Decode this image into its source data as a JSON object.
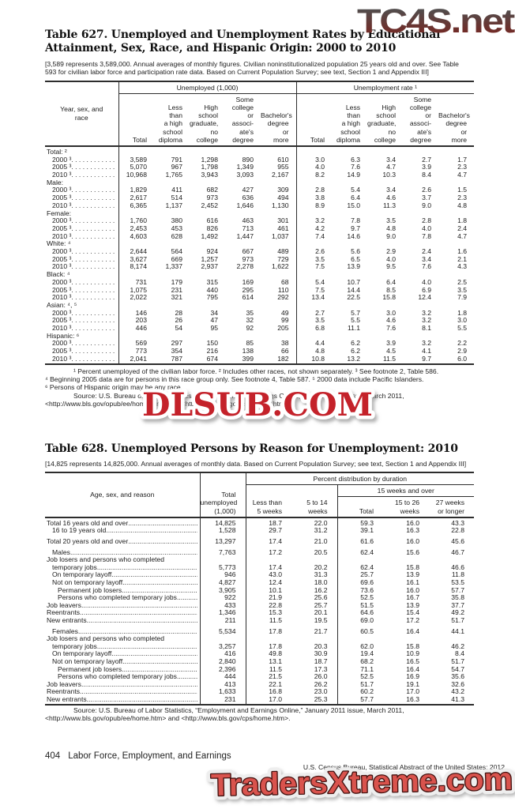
{
  "watermarks": {
    "top": "TC4S.net",
    "middle": "DLSUB.COM",
    "bottom": "TradersXtreme.com"
  },
  "table627": {
    "title": "Table 627. Unemployed and Unemployment Rates by Educational Attainment, Sex, Race, and Hispanic Origin: 2000 to 2010",
    "note": "[3,589 represents 3,589,000. Annual averages of monthly figures. Civilian noninstitutionalized population 25 years old and over. See Table 593 for civilian labor force and participation rate data. Based on Current Population Survey; see text, Section 1 and Appendix III]",
    "stub_header": "Year, sex, and\nrace",
    "groups": [
      "Unemployed (1,000)",
      "Unemployment rate ¹"
    ],
    "columns": [
      "Total",
      "Less than\na high\nschool\ndiploma",
      "High\nschool\ngraduate,\nno college",
      "Some\ncollege or\nassoci-\nate's\ndegree",
      "Bachelor's\ndegree or\nmore"
    ],
    "rows": [
      {
        "label": "Total: ²",
        "group": true
      },
      {
        "label": "2000 ³",
        "values": [
          "3,589",
          "791",
          "1,298",
          "890",
          "610",
          "3.0",
          "6.3",
          "3.4",
          "2.7",
          "1.7"
        ]
      },
      {
        "label": "2005 ³",
        "values": [
          "5,070",
          "967",
          "1,798",
          "1,349",
          "955",
          "4.0",
          "7.6",
          "4.7",
          "3.9",
          "2.3"
        ]
      },
      {
        "label": "2010 ³",
        "values": [
          "10,968",
          "1,765",
          "3,943",
          "3,093",
          "2,167",
          "8.2",
          "14.9",
          "10.3",
          "8.4",
          "4.7"
        ]
      },
      {
        "label": "Male:",
        "group": true
      },
      {
        "label": "2000 ³",
        "values": [
          "1,829",
          "411",
          "682",
          "427",
          "309",
          "2.8",
          "5.4",
          "3.4",
          "2.6",
          "1.5"
        ]
      },
      {
        "label": "2005 ³",
        "values": [
          "2,617",
          "514",
          "973",
          "636",
          "494",
          "3.8",
          "6.4",
          "4.6",
          "3.7",
          "2.3"
        ]
      },
      {
        "label": "2010 ³",
        "values": [
          "6,365",
          "1,137",
          "2,452",
          "1,646",
          "1,130",
          "8.9",
          "15.0",
          "11.3",
          "9.0",
          "4.8"
        ]
      },
      {
        "label": "Female:",
        "group": true
      },
      {
        "label": "2000 ³",
        "values": [
          "1,760",
          "380",
          "616",
          "463",
          "301",
          "3.2",
          "7.8",
          "3.5",
          "2.8",
          "1.8"
        ]
      },
      {
        "label": "2005 ³",
        "values": [
          "2,453",
          "453",
          "826",
          "713",
          "461",
          "4.2",
          "9.7",
          "4.8",
          "4.0",
          "2.4"
        ]
      },
      {
        "label": "2010 ³",
        "values": [
          "4,603",
          "628",
          "1,492",
          "1,447",
          "1,037",
          "7.4",
          "14.6",
          "9.0",
          "7.8",
          "4.7"
        ]
      },
      {
        "label": "White: ⁴",
        "group": true
      },
      {
        "label": "2000 ³",
        "values": [
          "2,644",
          "564",
          "924",
          "667",
          "489",
          "2.6",
          "5.6",
          "2.9",
          "2.4",
          "1.6"
        ]
      },
      {
        "label": "2005 ³",
        "values": [
          "3,627",
          "669",
          "1,257",
          "973",
          "729",
          "3.5",
          "6.5",
          "4.0",
          "3.4",
          "2.1"
        ]
      },
      {
        "label": "2010 ³",
        "values": [
          "8,174",
          "1,337",
          "2,937",
          "2,278",
          "1,622",
          "7.5",
          "13.9",
          "9.5",
          "7.6",
          "4.3"
        ]
      },
      {
        "label": "Black: ⁴",
        "group": true
      },
      {
        "label": "2000 ³",
        "values": [
          "731",
          "179",
          "315",
          "169",
          "68",
          "5.4",
          "10.7",
          "6.4",
          "4.0",
          "2.5"
        ]
      },
      {
        "label": "2005 ³",
        "values": [
          "1,075",
          "231",
          "440",
          "295",
          "110",
          "7.5",
          "14.4",
          "8.5",
          "6.9",
          "3.5"
        ]
      },
      {
        "label": "2010 ³",
        "values": [
          "2,022",
          "321",
          "795",
          "614",
          "292",
          "13.4",
          "22.5",
          "15.8",
          "12.4",
          "7.9"
        ]
      },
      {
        "label": "Asian: ⁴, ⁵",
        "group": true
      },
      {
        "label": "2000 ³",
        "values": [
          "146",
          "28",
          "34",
          "35",
          "49",
          "2.7",
          "5.7",
          "3.0",
          "3.2",
          "1.8"
        ]
      },
      {
        "label": "2005 ³",
        "values": [
          "203",
          "26",
          "47",
          "32",
          "99",
          "3.5",
          "5.5",
          "4.6",
          "3.2",
          "3.0"
        ]
      },
      {
        "label": "2010 ³",
        "values": [
          "446",
          "54",
          "95",
          "92",
          "205",
          "6.8",
          "11.1",
          "7.6",
          "8.1",
          "5.5"
        ]
      },
      {
        "label": "Hispanic: ⁶",
        "group": true
      },
      {
        "label": "2000 ³",
        "values": [
          "569",
          "297",
          "150",
          "85",
          "38",
          "4.4",
          "6.2",
          "3.9",
          "3.2",
          "2.2"
        ]
      },
      {
        "label": "2005 ³",
        "values": [
          "773",
          "354",
          "216",
          "138",
          "66",
          "4.8",
          "6.2",
          "4.5",
          "4.1",
          "2.9"
        ]
      },
      {
        "label": "2010 ³",
        "values": [
          "2,041",
          "787",
          "674",
          "399",
          "182",
          "10.8",
          "13.2",
          "11.5",
          "9.7",
          "6.0"
        ]
      }
    ],
    "footnotes": [
      "¹ Percent unemployed of the civilian labor force. ² Includes other races, not shown separately. ³ See footnote 2, Table 586.",
      "⁴ Beginning 2005 data are for persons in this race group only. See footnote 4, Table 587. ⁵ 2000 data include Pacific Islanders.",
      "⁶ Persons of Hispanic origin may be any race."
    ],
    "source": [
      "Source: U.S. Bureau of Labor Statistics, “Employment and Earnings Online,” January 2011 issue, March 2011,",
      "<http://www.bls.gov/opub/ee/home.htm> and <http://www.bls.gov/cps/home.htm>."
    ]
  },
  "table628": {
    "title": "Table 628. Unemployed Persons by Reason for Unemployment: 2010",
    "note": "[14,825 represents 14,825,000. Annual averages of monthly data. Based on Current Population Survey; see text, Section 1 and Appendix III]",
    "stub_header": "Age, sex, and reason",
    "total_col_header": "Total\nunemployed\n(1,000)",
    "group_header": "Percent distribution by duration",
    "subgroup_header": "15 weeks and over",
    "columns": [
      "Less than\n5 weeks",
      "5 to 14\nweeks",
      "Total",
      "15 to 26\nweeks",
      "27 weeks\nor longer"
    ],
    "rows": [
      {
        "label": "Total 16 years old and over",
        "bold": true,
        "indent": 0,
        "values": [
          "14,825",
          "18.7",
          "22.0",
          "59.3",
          "16.0",
          "43.3"
        ]
      },
      {
        "label": "16 to 19 years old",
        "indent": 1,
        "values": [
          "1,528",
          "29.7",
          "31.2",
          "39.1",
          "16.3",
          "22.8"
        ]
      },
      {
        "label": "Total 20 years old and over",
        "bold": true,
        "indent": 0,
        "gap": true,
        "values": [
          "13,297",
          "17.4",
          "21.0",
          "61.6",
          "16.0",
          "45.6"
        ]
      },
      {
        "label": "Males",
        "bold": true,
        "indent": 1,
        "gap": true,
        "values": [
          "7,763",
          "17.2",
          "20.5",
          "62.4",
          "15.6",
          "46.7"
        ]
      },
      {
        "label": "Job losers and persons who completed",
        "indent": 0
      },
      {
        "label": "temporary jobs",
        "indent": 1,
        "values": [
          "5,773",
          "17.4",
          "20.2",
          "62.4",
          "15.8",
          "46.6"
        ]
      },
      {
        "label": "On temporary layoff",
        "indent": 1,
        "values": [
          "946",
          "43.0",
          "31.3",
          "25.7",
          "13.9",
          "11.8"
        ]
      },
      {
        "label": "Not on temporary layoff",
        "indent": 1,
        "values": [
          "4,827",
          "12.4",
          "18.0",
          "69.6",
          "16.1",
          "53.5"
        ]
      },
      {
        "label": "Permanent job losers",
        "indent": 2,
        "values": [
          "3,905",
          "10.1",
          "16.2",
          "73.6",
          "16.0",
          "57.7"
        ]
      },
      {
        "label": "Persons who completed temporary jobs",
        "indent": 2,
        "values": [
          "922",
          "21.9",
          "25.6",
          "52.5",
          "16.7",
          "35.8"
        ]
      },
      {
        "label": "Job leavers",
        "indent": 0,
        "values": [
          "433",
          "22.8",
          "25.7",
          "51.5",
          "13.9",
          "37.7"
        ]
      },
      {
        "label": "Reentrants",
        "indent": 0,
        "values": [
          "1,346",
          "15.3",
          "20.1",
          "64.6",
          "15.4",
          "49.2"
        ]
      },
      {
        "label": "New entrants",
        "indent": 0,
        "values": [
          "211",
          "11.5",
          "19.5",
          "69.0",
          "17.2",
          "51.7"
        ]
      },
      {
        "label": "Females",
        "bold": true,
        "indent": 1,
        "gap": true,
        "values": [
          "5,534",
          "17.8",
          "21.7",
          "60.5",
          "16.4",
          "44.1"
        ]
      },
      {
        "label": "Job losers and persons who completed",
        "indent": 0
      },
      {
        "label": "temporary jobs",
        "indent": 1,
        "values": [
          "3,257",
          "17.8",
          "20.3",
          "62.0",
          "15.8",
          "46.2"
        ]
      },
      {
        "label": "On temporary layoff",
        "indent": 1,
        "values": [
          "416",
          "49.8",
          "30.9",
          "19.4",
          "10.9",
          "8.4"
        ]
      },
      {
        "label": "Not on temporary layoff",
        "indent": 1,
        "values": [
          "2,840",
          "13.1",
          "18.7",
          "68.2",
          "16.5",
          "51.7"
        ]
      },
      {
        "label": "Permanent job losers",
        "indent": 2,
        "values": [
          "2,396",
          "11.5",
          "17.3",
          "71.1",
          "16.4",
          "54.7"
        ]
      },
      {
        "label": "Persons who completed temporary jobs",
        "indent": 2,
        "values": [
          "444",
          "21.5",
          "26.0",
          "52.5",
          "16.9",
          "35.6"
        ]
      },
      {
        "label": "Job leavers",
        "indent": 0,
        "values": [
          "413",
          "22.1",
          "26.2",
          "51.7",
          "19.1",
          "32.6"
        ]
      },
      {
        "label": "Reentrants",
        "indent": 0,
        "values": [
          "1,633",
          "16.8",
          "23.0",
          "60.2",
          "17.0",
          "43.2"
        ]
      },
      {
        "label": "New entrants",
        "indent": 0,
        "values": [
          "231",
          "17.0",
          "25.3",
          "57.7",
          "16.3",
          "41.3"
        ]
      }
    ],
    "source": [
      "Source: U.S. Bureau of Labor Statistics, “Employment and Earnings Online,” January 2011 issue, March 2011,",
      "<http://www.bls.gov/opub/ee/home.htm> and <http://www.bls.gov/cps/home.htm>."
    ]
  },
  "footer": {
    "page_number": "404",
    "section": "Labor Force, Employment, and Earnings",
    "imprint": "U.S. Census Bureau, Statistical Abstract of the United States: 2012"
  },
  "colors": {
    "rule": "#2d2d2d",
    "watermark_mid_red": "#c4232c",
    "watermark_bottom_fill": "#d9534d",
    "watermark_bottom_stroke": "#431210",
    "watermark_top_gradient": [
      "#4f4f4f",
      "#79241f"
    ]
  }
}
